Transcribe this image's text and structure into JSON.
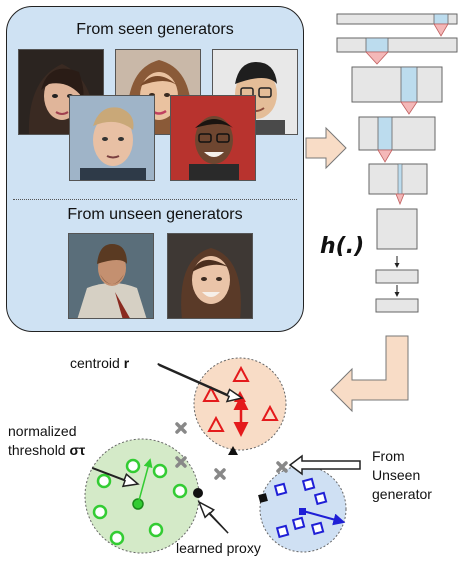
{
  "panel": {
    "seen_title": "From seen generators",
    "unseen_title": "From unseen generators"
  },
  "network": {
    "label": "h(.)"
  },
  "labels": {
    "centroid": "centroid",
    "centroid_symbol": "r",
    "threshold_line1": "normalized",
    "threshold_line2": "threshold",
    "threshold_symbol": "στ",
    "proxy": "learned proxy",
    "unseen_line1": "From",
    "unseen_line2": "Unseen",
    "unseen_line3": "generator"
  },
  "colors": {
    "panel_bg": "#cfe2f3",
    "red_cluster": "#f8dcc6",
    "green_cluster": "#d4eac8",
    "blue_cluster": "#cfe0f3",
    "arrow_fill": "#f8dcc6",
    "red_mark": "#e41a1c",
    "green_mark": "#33cc33",
    "blue_mark": "#1f1fd6"
  }
}
